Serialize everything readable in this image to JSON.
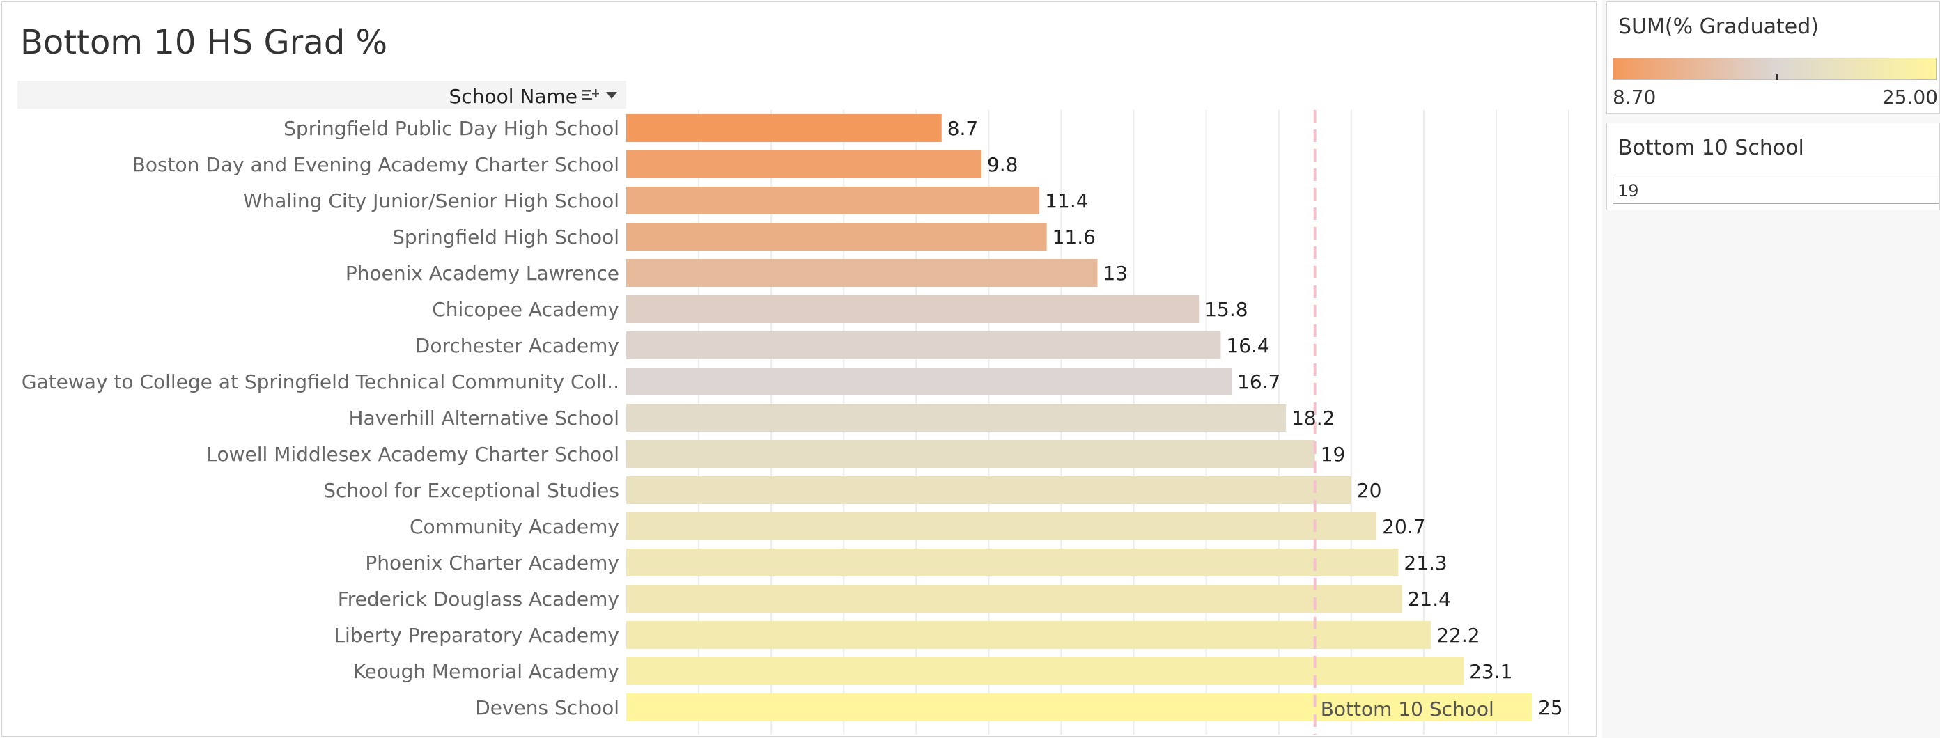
{
  "chart_data": {
    "type": "bar",
    "orientation": "horizontal",
    "title": "Bottom 10 HS Grad %",
    "row_header": "School Name",
    "categories": [
      "Springfield Public Day High School",
      "Boston Day and Evening Academy Charter School",
      "Whaling City Junior/Senior High School",
      "Springfield High School",
      "Phoenix Academy Lawrence",
      "Chicopee Academy",
      "Dorchester Academy",
      "Gateway to College at Springfield Technical Community Coll..",
      "Haverhill Alternative School",
      "Lowell Middlesex Academy Charter School",
      "School for Exceptional Studies",
      "Community Academy",
      "Phoenix Charter Academy",
      "Frederick Douglass Academy",
      "Liberty Preparatory Academy",
      "Keough Memorial Academy",
      "Devens School"
    ],
    "values": [
      8.7,
      9.8,
      11.4,
      11.6,
      13,
      15.8,
      16.4,
      16.7,
      18.2,
      19,
      20,
      20.7,
      21.3,
      21.4,
      22.2,
      23.1,
      25
    ],
    "value_labels": [
      "8.7",
      "9.8",
      "11.4",
      "11.6",
      "13",
      "15.8",
      "16.4",
      "16.7",
      "18.2",
      "19",
      "20",
      "20.7",
      "21.3",
      "21.4",
      "22.2",
      "23.1",
      "25"
    ],
    "xlim": [
      0,
      26.5
    ],
    "grid": "vertical",
    "reference_line": {
      "value": 19,
      "label": "Bottom 10 School",
      "color": "#f4c2cc",
      "style": "dashed"
    },
    "color_scale": {
      "min": 8.7,
      "max": 25,
      "colors": [
        "#f4995c",
        "#dcd6d3",
        "#fff59d"
      ]
    }
  },
  "legend": {
    "title": "SUM(% Graduated)",
    "min_label": "8.70",
    "max_label": "25.00"
  },
  "parameter": {
    "title": "Bottom 10 School",
    "value": "19"
  },
  "icons": {
    "sort": "sort-descending-icon",
    "menu": "chevron-down-icon"
  }
}
